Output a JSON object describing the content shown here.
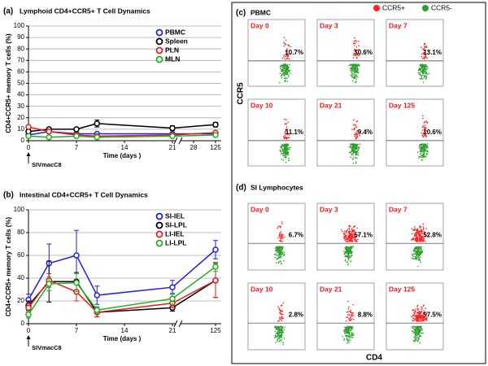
{
  "chart_data": [
    {
      "type": "line",
      "panel_label": "(a)",
      "title": "Lymphoid CD4+CCR5+ T Cell Dynamics",
      "y_label": "CD4+CCR5+ memory T cells (%)",
      "x_label": "Time (days )",
      "annotation": "SIVmacC8",
      "x": [
        0,
        3,
        7,
        10,
        21,
        125
      ],
      "xlim": [
        0,
        125
      ],
      "xticks": [
        0,
        7,
        14,
        21,
        28,
        125
      ],
      "axis_break_after": 21,
      "ylim": [
        0,
        100
      ],
      "yticks": [
        0,
        10,
        20,
        30,
        40,
        50,
        60,
        70,
        80,
        90,
        100
      ],
      "grid": true,
      "legend": "upper right",
      "series": [
        {
          "name": "PBMC",
          "color": "#1f1fe0",
          "values": [
            5,
            8,
            6,
            6,
            6,
            6
          ]
        },
        {
          "name": "Spleen",
          "color": "#000000",
          "values": [
            8,
            10,
            10,
            15,
            11,
            14
          ],
          "errors": [
            2,
            1,
            1,
            3,
            2,
            2
          ]
        },
        {
          "name": "PLN",
          "color": "#e01f1f",
          "values": [
            12,
            8,
            5,
            4,
            5,
            7
          ]
        },
        {
          "name": "MLN",
          "color": "#1fb01f",
          "values": [
            4,
            3,
            4,
            3,
            4,
            5
          ]
        }
      ]
    },
    {
      "type": "line",
      "panel_label": "(b)",
      "title": "Intestinal CD4+CCR5+ T Cell Dynamics",
      "y_label": "CD4+CCR5+ memory T cells (%)",
      "x_label": "Time (days )",
      "annotation": "SIVmacC8",
      "x": [
        0,
        3,
        7,
        10,
        21,
        125
      ],
      "xlim": [
        0,
        125
      ],
      "xticks": [
        0,
        7,
        14,
        21,
        125
      ],
      "axis_break_after": 21,
      "ylim": [
        0,
        100
      ],
      "yticks": [
        0,
        20,
        40,
        60,
        80,
        100
      ],
      "grid": true,
      "legend": "upper right",
      "series": [
        {
          "name": "SI-IEL",
          "color": "#1f1fe0",
          "values": [
            21,
            53,
            60,
            25,
            32,
            65
          ],
          "errors": [
            5,
            17,
            22,
            8,
            6,
            8
          ]
        },
        {
          "name": "SI-LPL",
          "color": "#000000",
          "values": [
            16,
            37,
            37,
            10,
            14,
            38
          ],
          "errors": [
            4,
            18,
            8,
            4,
            3,
            15
          ]
        },
        {
          "name": "LI-IEL",
          "color": "#e01f1f",
          "values": [
            14,
            38,
            28,
            10,
            18,
            38
          ],
          "errors": [
            4,
            6,
            8,
            4,
            4,
            15
          ]
        },
        {
          "name": "LI-LPL",
          "color": "#1fb01f",
          "values": [
            8,
            35,
            36,
            12,
            22,
            50
          ],
          "errors": [
            3,
            6,
            8,
            3,
            5,
            4
          ]
        }
      ]
    }
  ],
  "flow": {
    "y_label": "CCR5",
    "x_label": "CD4",
    "legend": [
      {
        "name": "CCR5+",
        "color": "#ff2020"
      },
      {
        "name": "CCR5-",
        "color": "#2e9e2e"
      }
    ],
    "panels": [
      {
        "label": "(c)",
        "title": "PBMC",
        "plots": [
          {
            "day": "Day 0",
            "percent": "10.7%"
          },
          {
            "day": "Day 3",
            "percent": "10.6%"
          },
          {
            "day": "Day 7",
            "percent": "13.1%"
          },
          {
            "day": "Day 10",
            "percent": "11.1%"
          },
          {
            "day": "Day 21",
            "percent": "9.4%"
          },
          {
            "day": "Day 125",
            "percent": "10.6%"
          }
        ]
      },
      {
        "label": "(d)",
        "title": "SI Lymphocytes",
        "plots": [
          {
            "day": "Day 0",
            "percent": "6.7%"
          },
          {
            "day": "Day 3",
            "percent": "57.1%"
          },
          {
            "day": "Day 7",
            "percent": "52.8%"
          },
          {
            "day": "Day 10",
            "percent": "2.8%"
          },
          {
            "day": "Day 21",
            "percent": "8.8%"
          },
          {
            "day": "Day 125",
            "percent": "57.5%"
          }
        ]
      }
    ]
  }
}
